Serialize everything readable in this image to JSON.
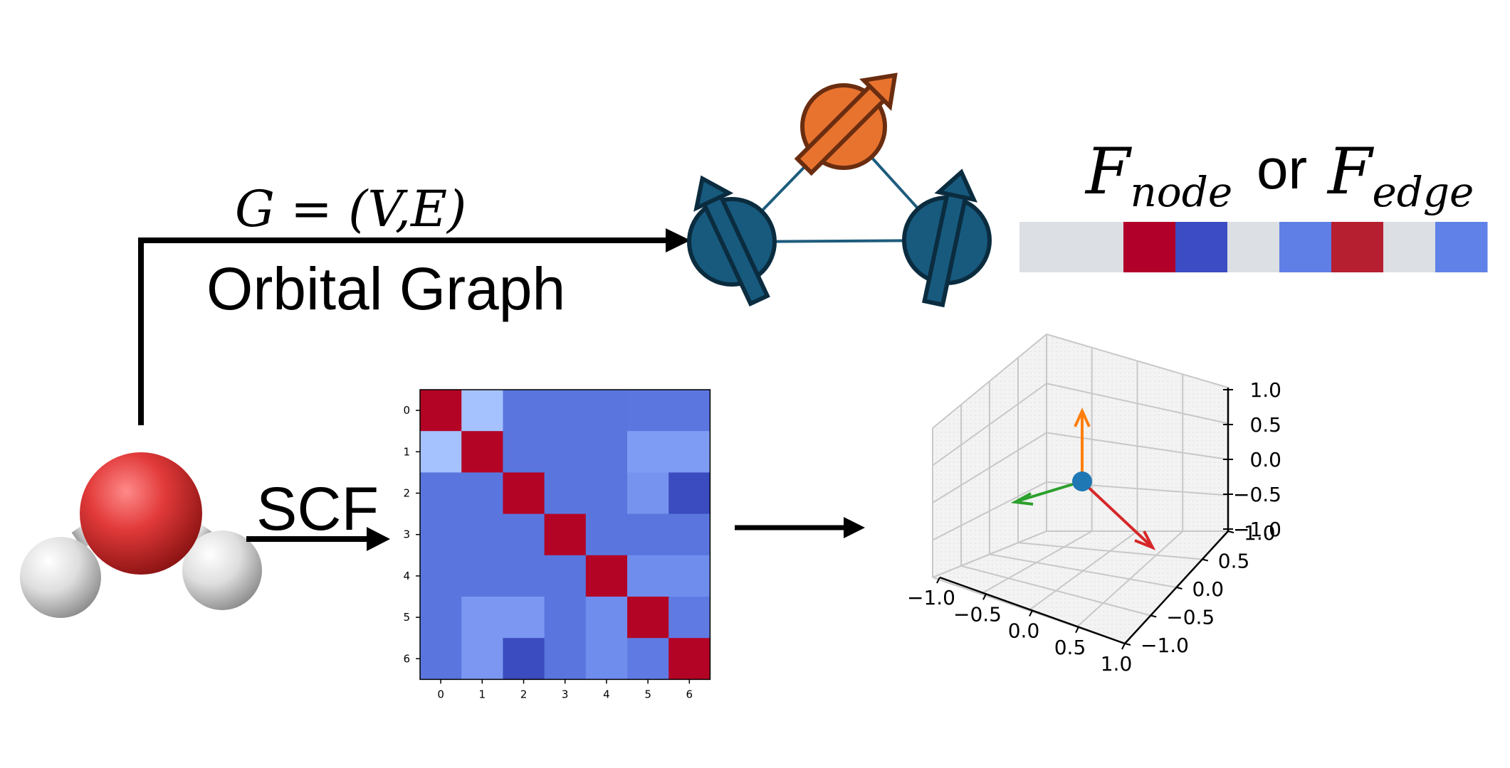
{
  "graph_formula": "G = (V,E)",
  "graph_label": "Orbital Graph",
  "scf_label": "SCF",
  "feature_label": {
    "f1": "F",
    "sub1": "node",
    "or": "or",
    "f2": "F",
    "sub2": "edge"
  },
  "feature_vector": {
    "colors": [
      "#dcdfe3",
      "#dcdfe3",
      "#b1002a",
      "#3c4cc4",
      "#dcdfe3",
      "#5f7fe6",
      "#b61f2f",
      "#dcdfe3",
      "#6081e8"
    ]
  },
  "orbital_graph": {
    "nodes": [
      {
        "name": "top-orbital",
        "color": "#e8732f",
        "outline": "#6a2d10",
        "spin": "up"
      },
      {
        "name": "left-orbital",
        "color": "#175a7e",
        "outline": "#0b2c3f",
        "spin": "up"
      },
      {
        "name": "right-orbital",
        "color": "#175a7e",
        "outline": "#0b2c3f",
        "spin": "up"
      }
    ],
    "edge_color": "#1e5c7d"
  },
  "molecule": {
    "oxygen_color": "#e23a3a",
    "hydrogen_color": "#e9e9e9"
  },
  "chart_data": [
    {
      "type": "heatmap",
      "x_ticks": [
        "0",
        "1",
        "2",
        "3",
        "4",
        "5",
        "6"
      ],
      "y_ticks": [
        "0",
        "1",
        "2",
        "3",
        "4",
        "5",
        "6"
      ],
      "matrix_colors": [
        [
          "#b40426",
          "#a5c2ff",
          "#5a76de",
          "#5a76de",
          "#5a76de",
          "#5b77df",
          "#5b77df"
        ],
        [
          "#a5c2ff",
          "#b40426",
          "#5a76de",
          "#5a76de",
          "#5a76de",
          "#7f9cf4",
          "#7f9cf4"
        ],
        [
          "#5a76de",
          "#5a76de",
          "#b40426",
          "#5a76de",
          "#5a76de",
          "#7693ef",
          "#3b4cc0"
        ],
        [
          "#5a76de",
          "#5a76de",
          "#5a76de",
          "#b40426",
          "#5a76de",
          "#5a76de",
          "#5a76de"
        ],
        [
          "#5a76de",
          "#5a76de",
          "#5a76de",
          "#5a76de",
          "#b40426",
          "#6f8ded",
          "#6f8ded"
        ],
        [
          "#5a76de",
          "#7b97f1",
          "#7b97f1",
          "#5a76de",
          "#6f8ded",
          "#b40426",
          "#5f7be3"
        ],
        [
          "#5a76de",
          "#7b97f1",
          "#3b4cc0",
          "#5a76de",
          "#6f8ded",
          "#5f7be3",
          "#b40426"
        ]
      ]
    },
    {
      "type": "scatter",
      "axis_ticks": {
        "x": [
          "−1.0",
          "−0.5",
          "0.0",
          "0.5",
          "1.0"
        ],
        "y": [
          "−1.0",
          "−0.5",
          "0.0",
          "0.5",
          "1.0"
        ],
        "z": [
          "1.0",
          "0.5",
          "0.0",
          "−0.5",
          "−1.0"
        ]
      },
      "xlim": [
        -1,
        1
      ],
      "ylim": [
        -1,
        1
      ],
      "zlim": [
        -1,
        1
      ],
      "grid": true,
      "vectors": [
        {
          "color": "#ff7f0e"
        },
        {
          "color": "#2ca02c"
        },
        {
          "color": "#d62728"
        }
      ],
      "point_color": "#1f77b4"
    }
  ]
}
